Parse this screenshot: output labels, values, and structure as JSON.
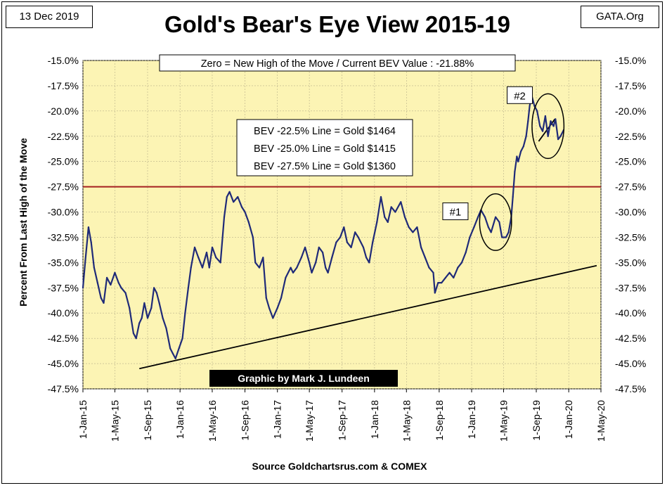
{
  "header": {
    "date": "13 Dec 2019",
    "site": "GATA.Org",
    "title": "Gold's Bear's Eye View 2015-19"
  },
  "chart_data": {
    "type": "line",
    "title": "Gold's Bear's Eye View 2015-19",
    "subtitle": "Zero = New High of the Move / Current  BEV Value : -21.88%",
    "ylabel": "Percent  From Last High of the Move",
    "xlabel": "Source Goldchartsrus.com & COMEX",
    "credit": "Graphic by Mark J. Lundeen",
    "ylim": [
      -47.5,
      -15.0
    ],
    "xlim": [
      "2015-01-01",
      "2020-05-01"
    ],
    "y_ticks": [
      "-15.0%",
      "-17.5%",
      "-20.0%",
      "-22.5%",
      "-25.0%",
      "-27.5%",
      "-30.0%",
      "-32.5%",
      "-35.0%",
      "-37.5%",
      "-40.0%",
      "-42.5%",
      "-45.0%",
      "-47.5%"
    ],
    "x_ticks": [
      "1-Jan-15",
      "1-May-15",
      "1-Sep-15",
      "1-Jan-16",
      "1-May-16",
      "1-Sep-16",
      "1-Jan-17",
      "1-May-17",
      "1-Sep-17",
      "1-Jan-18",
      "1-May-18",
      "1-Sep-18",
      "1-Jan-19",
      "1-May-19",
      "1-Sep-19",
      "1-Jan-20",
      "1-May-20"
    ],
    "grid": true,
    "colors": {
      "plot_bg": "#FCF4B4",
      "series": "#1F2A78",
      "reference_line": "#A52020",
      "trend_line": "#000000"
    },
    "reference_line": {
      "y": -27.5
    },
    "bev_table": [
      "BEV -22.5% Line = Gold $1464",
      "BEV -25.0% Line = Gold $1415",
      "BEV -27.5% Line = Gold $1360"
    ],
    "annotations": [
      {
        "label": "#1",
        "x": "2018-11-01",
        "y": -30.0
      },
      {
        "label": "#2",
        "x": "2019-07-01",
        "y": -18.5
      }
    ],
    "circles": [
      {
        "center_x": "2019-04-01",
        "center_y": -31.0,
        "rx_days": 60,
        "ry": 2.8
      },
      {
        "center_x": "2019-10-15",
        "center_y": -21.5,
        "rx_days": 60,
        "ry": 3.2
      }
    ],
    "trend_lines": [
      {
        "x": [
          "2015-08-01",
          "2020-04-15"
        ],
        "y": [
          -45.5,
          -35.3
        ]
      },
      {
        "x": [
          "2019-09-10",
          "2019-11-10"
        ],
        "y": [
          -23.0,
          -20.8
        ]
      }
    ],
    "series": [
      {
        "x": [
          "2015-01-01",
          "2015-01-10",
          "2015-01-22",
          "2015-02-01",
          "2015-02-12",
          "2015-02-25",
          "2015-03-10",
          "2015-03-20",
          "2015-04-01",
          "2015-04-15",
          "2015-05-01",
          "2015-05-15",
          "2015-05-25",
          "2015-06-10",
          "2015-06-25",
          "2015-07-10",
          "2015-07-20",
          "2015-08-01",
          "2015-08-10",
          "2015-08-20",
          "2015-09-01",
          "2015-09-15",
          "2015-09-25",
          "2015-10-05",
          "2015-10-15",
          "2015-10-28",
          "2015-11-10",
          "2015-11-25",
          "2015-12-05",
          "2015-12-15",
          "2015-12-28",
          "2016-01-10",
          "2016-01-20",
          "2016-02-01",
          "2016-02-11",
          "2016-02-25",
          "2016-03-10",
          "2016-03-25",
          "2016-04-10",
          "2016-04-20",
          "2016-05-01",
          "2016-05-15",
          "2016-06-01",
          "2016-06-15",
          "2016-06-25",
          "2016-07-05",
          "2016-07-20",
          "2016-08-05",
          "2016-08-20",
          "2016-09-01",
          "2016-09-15",
          "2016-10-01",
          "2016-10-10",
          "2016-10-25",
          "2016-11-08",
          "2016-11-20",
          "2016-12-01",
          "2016-12-15",
          "2017-01-01",
          "2017-01-15",
          "2017-02-01",
          "2017-02-20",
          "2017-03-01",
          "2017-03-15",
          "2017-04-01",
          "2017-04-15",
          "2017-05-01",
          "2017-05-10",
          "2017-05-25",
          "2017-06-06",
          "2017-06-20",
          "2017-07-01",
          "2017-07-10",
          "2017-07-25",
          "2017-08-10",
          "2017-08-25",
          "2017-09-08",
          "2017-09-20",
          "2017-10-05",
          "2017-10-20",
          "2017-11-01",
          "2017-11-20",
          "2017-12-01",
          "2017-12-12",
          "2017-12-25",
          "2018-01-10",
          "2018-01-25",
          "2018-02-08",
          "2018-02-20",
          "2018-03-05",
          "2018-03-20",
          "2018-04-10",
          "2018-04-25",
          "2018-05-10",
          "2018-05-25",
          "2018-06-10",
          "2018-06-25",
          "2018-07-10",
          "2018-07-25",
          "2018-08-10",
          "2018-08-16",
          "2018-08-28",
          "2018-09-10",
          "2018-09-25",
          "2018-10-10",
          "2018-10-25",
          "2018-11-10",
          "2018-11-25",
          "2018-12-10",
          "2018-12-25",
          "2019-01-10",
          "2019-01-25",
          "2019-02-05",
          "2019-02-20",
          "2019-03-05",
          "2019-03-15",
          "2019-04-01",
          "2019-04-15",
          "2019-04-25",
          "2019-05-10",
          "2019-05-20",
          "2019-05-30",
          "2019-06-05",
          "2019-06-12",
          "2019-06-20",
          "2019-06-25",
          "2019-07-05",
          "2019-07-15",
          "2019-07-25",
          "2019-08-01",
          "2019-08-07",
          "2019-08-15",
          "2019-08-25",
          "2019-09-04",
          "2019-09-15",
          "2019-09-25",
          "2019-10-05",
          "2019-10-15",
          "2019-10-25",
          "2019-11-05",
          "2019-11-12",
          "2019-11-22",
          "2019-12-01",
          "2019-12-13"
        ],
        "y": [
          -37.5,
          -34.8,
          -31.5,
          -33.0,
          -35.5,
          -37.0,
          -38.5,
          -39.0,
          -36.5,
          -37.2,
          -36.0,
          -37.0,
          -37.5,
          -38.0,
          -39.5,
          -42.0,
          -42.5,
          -41.0,
          -40.5,
          -39.0,
          -40.5,
          -39.5,
          -37.5,
          -38.0,
          -39.0,
          -40.5,
          -41.5,
          -43.5,
          -44.0,
          -44.5,
          -43.5,
          -42.5,
          -40.0,
          -37.5,
          -35.5,
          -33.5,
          -34.5,
          -35.5,
          -34.0,
          -35.5,
          -33.5,
          -34.5,
          -35.0,
          -30.5,
          -28.5,
          -28.0,
          -29.0,
          -28.5,
          -29.5,
          -30.0,
          -31.0,
          -32.5,
          -35.0,
          -35.5,
          -34.5,
          -38.5,
          -39.5,
          -40.5,
          -39.5,
          -38.5,
          -36.5,
          -35.5,
          -36.0,
          -35.5,
          -34.5,
          -33.5,
          -35.0,
          -36.0,
          -35.0,
          -33.5,
          -34.0,
          -35.5,
          -36.0,
          -34.5,
          -33.0,
          -32.5,
          -31.5,
          -33.0,
          -33.5,
          -32.0,
          -32.5,
          -33.5,
          -34.5,
          -35.0,
          -33.0,
          -31.0,
          -28.5,
          -30.5,
          -31.0,
          -29.5,
          -30.0,
          -29.0,
          -30.5,
          -31.5,
          -32.0,
          -31.5,
          -33.5,
          -34.5,
          -35.5,
          -36.0,
          -38.0,
          -37.0,
          -37.0,
          -36.5,
          -36.0,
          -36.5,
          -35.5,
          -35.0,
          -34.0,
          -32.5,
          -31.5,
          -30.5,
          -29.8,
          -30.5,
          -31.5,
          -32.0,
          -30.5,
          -31.0,
          -32.5,
          -32.5,
          -32.0,
          -30.5,
          -28.5,
          -26.0,
          -24.5,
          -25.0,
          -24.0,
          -23.5,
          -22.5,
          -21.0,
          -19.5,
          -18.5,
          -19.5,
          -20.0,
          -21.5,
          -22.0,
          -20.5,
          -22.5,
          -21.0,
          -21.5,
          -20.8,
          -22.8,
          -22.5,
          -21.88
        ]
      }
    ]
  }
}
